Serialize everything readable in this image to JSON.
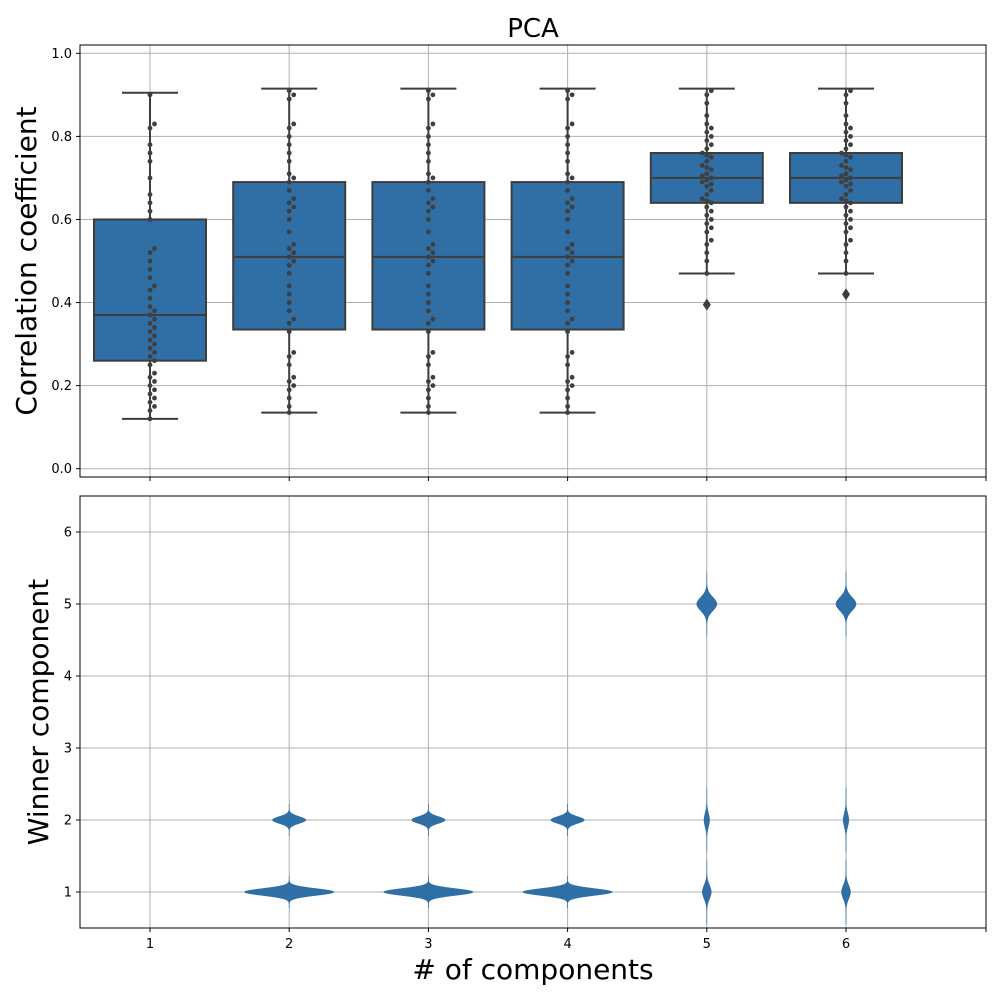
{
  "chart_data": [
    {
      "type": "box",
      "title": "PCA",
      "xlabel": "",
      "ylabel": "Correlation coefficient",
      "categories": [
        "1",
        "2",
        "3",
        "4",
        "5",
        "6"
      ],
      "ylim": [
        -0.02,
        1.02
      ],
      "yticks": [
        "0.0",
        "0.2",
        "0.4",
        "0.6",
        "0.8",
        "1.0"
      ],
      "ytick_values": [
        0.0,
        0.2,
        0.4,
        0.6,
        0.8,
        1.0
      ],
      "grid": true,
      "color": "#2f6fa5",
      "point_color": "#3f3f3f",
      "boxes": [
        {
          "category": "1",
          "whisker_low": 0.12,
          "q1": 0.26,
          "median": 0.37,
          "q3": 0.6,
          "whisker_high": 0.905,
          "outliers": []
        },
        {
          "category": "2",
          "whisker_low": 0.135,
          "q1": 0.335,
          "median": 0.51,
          "q3": 0.69,
          "whisker_high": 0.915,
          "outliers": []
        },
        {
          "category": "3",
          "whisker_low": 0.135,
          "q1": 0.335,
          "median": 0.51,
          "q3": 0.69,
          "whisker_high": 0.915,
          "outliers": []
        },
        {
          "category": "4",
          "whisker_low": 0.135,
          "q1": 0.335,
          "median": 0.51,
          "q3": 0.69,
          "whisker_high": 0.915,
          "outliers": []
        },
        {
          "category": "5",
          "whisker_low": 0.47,
          "q1": 0.64,
          "median": 0.7,
          "q3": 0.76,
          "whisker_high": 0.915,
          "outliers": [
            0.395
          ]
        },
        {
          "category": "6",
          "whisker_low": 0.47,
          "q1": 0.64,
          "median": 0.7,
          "q3": 0.76,
          "whisker_high": 0.915,
          "outliers": [
            0.42
          ]
        }
      ],
      "points": [
        {
          "category": "1",
          "values": [
            0.12,
            0.14,
            0.15,
            0.16,
            0.17,
            0.18,
            0.19,
            0.2,
            0.21,
            0.22,
            0.23,
            0.25,
            0.26,
            0.27,
            0.28,
            0.29,
            0.3,
            0.31,
            0.32,
            0.33,
            0.34,
            0.35,
            0.36,
            0.37,
            0.38,
            0.39,
            0.41,
            0.43,
            0.44,
            0.46,
            0.48,
            0.5,
            0.52,
            0.53,
            0.6,
            0.62,
            0.64,
            0.66,
            0.7,
            0.74,
            0.76,
            0.78,
            0.82,
            0.83,
            0.9
          ]
        },
        {
          "category": "2",
          "values": [
            0.135,
            0.15,
            0.17,
            0.19,
            0.2,
            0.21,
            0.22,
            0.25,
            0.27,
            0.28,
            0.33,
            0.35,
            0.36,
            0.38,
            0.4,
            0.42,
            0.44,
            0.47,
            0.49,
            0.5,
            0.51,
            0.52,
            0.53,
            0.54,
            0.57,
            0.6,
            0.62,
            0.63,
            0.64,
            0.65,
            0.67,
            0.69,
            0.7,
            0.71,
            0.74,
            0.76,
            0.78,
            0.8,
            0.82,
            0.83,
            0.89,
            0.9,
            0.91
          ]
        },
        {
          "category": "3",
          "values": [
            0.135,
            0.15,
            0.17,
            0.19,
            0.2,
            0.21,
            0.22,
            0.25,
            0.27,
            0.28,
            0.33,
            0.35,
            0.36,
            0.38,
            0.4,
            0.42,
            0.44,
            0.47,
            0.49,
            0.5,
            0.51,
            0.52,
            0.53,
            0.54,
            0.57,
            0.6,
            0.62,
            0.63,
            0.64,
            0.65,
            0.67,
            0.69,
            0.7,
            0.71,
            0.74,
            0.76,
            0.78,
            0.8,
            0.82,
            0.83,
            0.89,
            0.9,
            0.91
          ]
        },
        {
          "category": "4",
          "values": [
            0.135,
            0.15,
            0.17,
            0.19,
            0.2,
            0.21,
            0.22,
            0.25,
            0.27,
            0.28,
            0.33,
            0.35,
            0.36,
            0.38,
            0.4,
            0.42,
            0.44,
            0.47,
            0.49,
            0.5,
            0.51,
            0.52,
            0.53,
            0.54,
            0.57,
            0.6,
            0.62,
            0.63,
            0.64,
            0.65,
            0.67,
            0.69,
            0.7,
            0.71,
            0.74,
            0.76,
            0.78,
            0.8,
            0.82,
            0.83,
            0.89,
            0.9,
            0.91
          ]
        },
        {
          "category": "5",
          "values": [
            0.395,
            0.47,
            0.5,
            0.52,
            0.54,
            0.55,
            0.57,
            0.58,
            0.59,
            0.6,
            0.61,
            0.62,
            0.63,
            0.64,
            0.645,
            0.65,
            0.66,
            0.67,
            0.68,
            0.685,
            0.69,
            0.695,
            0.7,
            0.705,
            0.71,
            0.72,
            0.725,
            0.73,
            0.74,
            0.75,
            0.755,
            0.76,
            0.77,
            0.78,
            0.79,
            0.8,
            0.81,
            0.82,
            0.83,
            0.85,
            0.88,
            0.9,
            0.91
          ]
        },
        {
          "category": "6",
          "values": [
            0.42,
            0.47,
            0.5,
            0.52,
            0.54,
            0.55,
            0.57,
            0.58,
            0.59,
            0.6,
            0.61,
            0.62,
            0.63,
            0.64,
            0.645,
            0.65,
            0.66,
            0.67,
            0.68,
            0.685,
            0.69,
            0.695,
            0.7,
            0.705,
            0.71,
            0.72,
            0.725,
            0.73,
            0.74,
            0.75,
            0.755,
            0.76,
            0.77,
            0.78,
            0.79,
            0.8,
            0.81,
            0.82,
            0.83,
            0.85,
            0.88,
            0.9,
            0.91
          ]
        }
      ]
    },
    {
      "type": "violin",
      "title": "",
      "xlabel": "# of components",
      "ylabel": "Winner component",
      "categories": [
        "1",
        "2",
        "3",
        "4",
        "5",
        "6"
      ],
      "ylim": [
        0.5,
        6.5
      ],
      "yticks": [
        "1",
        "2",
        "3",
        "4",
        "5",
        "6"
      ],
      "ytick_values": [
        1,
        2,
        3,
        4,
        5,
        6
      ],
      "grid": true,
      "color": "#2f6fa5",
      "violins": [
        {
          "category": "1",
          "peaks": []
        },
        {
          "category": "2",
          "peaks": [
            {
              "center": 1,
              "width": 0.8,
              "spread": 0.07
            },
            {
              "center": 2,
              "width": 0.3,
              "spread": 0.07
            }
          ]
        },
        {
          "category": "3",
          "peaks": [
            {
              "center": 1,
              "width": 0.8,
              "spread": 0.07
            },
            {
              "center": 2,
              "width": 0.3,
              "spread": 0.07
            }
          ]
        },
        {
          "category": "4",
          "peaks": [
            {
              "center": 1,
              "width": 0.8,
              "spread": 0.07
            },
            {
              "center": 2,
              "width": 0.3,
              "spread": 0.07
            }
          ]
        },
        {
          "category": "5",
          "peaks": [
            {
              "center": 5,
              "width": 0.18,
              "spread": 0.14
            },
            {
              "center": 2,
              "width": 0.05,
              "spread": 0.14
            },
            {
              "center": 1,
              "width": 0.08,
              "spread": 0.14
            }
          ]
        },
        {
          "category": "6",
          "peaks": [
            {
              "center": 5,
              "width": 0.18,
              "spread": 0.14
            },
            {
              "center": 2,
              "width": 0.05,
              "spread": 0.14
            },
            {
              "center": 1,
              "width": 0.08,
              "spread": 0.14
            }
          ]
        }
      ]
    }
  ]
}
